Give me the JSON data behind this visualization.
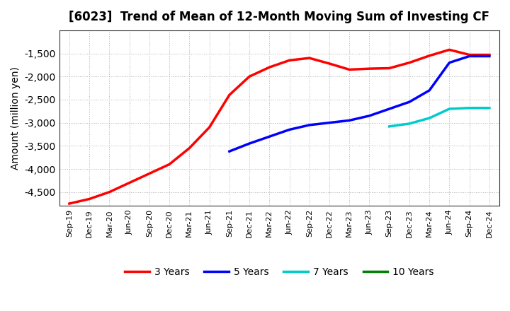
{
  "title": "[6023]  Trend of Mean of 12-Month Moving Sum of Investing CF",
  "ylabel": "Amount (million yen)",
  "background_color": "#FFFFFF",
  "plot_bg_color": "#FFFFFF",
  "grid_color": "#AAAAAA",
  "ylim": [
    -4800,
    -1000
  ],
  "yticks": [
    -4500,
    -4000,
    -3500,
    -3000,
    -2500,
    -2000,
    -1500
  ],
  "x_labels": [
    "Sep-19",
    "Dec-19",
    "Mar-20",
    "Jun-20",
    "Sep-20",
    "Dec-20",
    "Mar-21",
    "Jun-21",
    "Sep-21",
    "Dec-21",
    "Mar-22",
    "Jun-22",
    "Sep-22",
    "Dec-22",
    "Mar-23",
    "Jun-23",
    "Sep-23",
    "Dec-23",
    "Mar-24",
    "Jun-24",
    "Sep-24",
    "Dec-24"
  ],
  "series": {
    "3years": {
      "color": "#FF0000",
      "label": "3 Years",
      "points": [
        [
          "Sep-19",
          -4750
        ],
        [
          "Dec-19",
          -4650
        ],
        [
          "Mar-20",
          -4500
        ],
        [
          "Jun-20",
          -4300
        ],
        [
          "Sep-20",
          -4100
        ],
        [
          "Dec-20",
          -3900
        ],
        [
          "Mar-21",
          -3550
        ],
        [
          "Jun-21",
          -3100
        ],
        [
          "Sep-21",
          -2400
        ],
        [
          "Dec-21",
          -2000
        ],
        [
          "Mar-22",
          -1800
        ],
        [
          "Jun-22",
          -1650
        ],
        [
          "Sep-22",
          -1600
        ],
        [
          "Dec-22",
          -1720
        ],
        [
          "Mar-23",
          -1850
        ],
        [
          "Jun-23",
          -1830
        ],
        [
          "Sep-23",
          -1820
        ],
        [
          "Dec-23",
          -1700
        ],
        [
          "Mar-24",
          -1550
        ],
        [
          "Jun-24",
          -1420
        ],
        [
          "Sep-24",
          -1530
        ],
        [
          "Dec-24",
          -1530
        ]
      ]
    },
    "5years": {
      "color": "#0000FF",
      "label": "5 Years",
      "points": [
        [
          "Sep-21",
          -3620
        ],
        [
          "Dec-21",
          -3450
        ],
        [
          "Mar-22",
          -3300
        ],
        [
          "Jun-22",
          -3150
        ],
        [
          "Sep-22",
          -3050
        ],
        [
          "Dec-22",
          -3000
        ],
        [
          "Mar-23",
          -2950
        ],
        [
          "Jun-23",
          -2850
        ],
        [
          "Sep-23",
          -2700
        ],
        [
          "Dec-23",
          -2550
        ],
        [
          "Mar-24",
          -2300
        ],
        [
          "Jun-24",
          -1700
        ],
        [
          "Sep-24",
          -1560
        ],
        [
          "Dec-24",
          -1560
        ]
      ]
    },
    "7years": {
      "color": "#00CCCC",
      "label": "7 Years",
      "points": [
        [
          "Sep-23",
          -3080
        ],
        [
          "Dec-23",
          -3020
        ],
        [
          "Mar-24",
          -2900
        ],
        [
          "Jun-24",
          -2700
        ],
        [
          "Sep-24",
          -2680
        ],
        [
          "Dec-24",
          -2680
        ]
      ]
    },
    "10years": {
      "color": "#008000",
      "label": "10 Years",
      "points": []
    }
  },
  "legend_order": [
    "3years",
    "5years",
    "7years",
    "10years"
  ]
}
